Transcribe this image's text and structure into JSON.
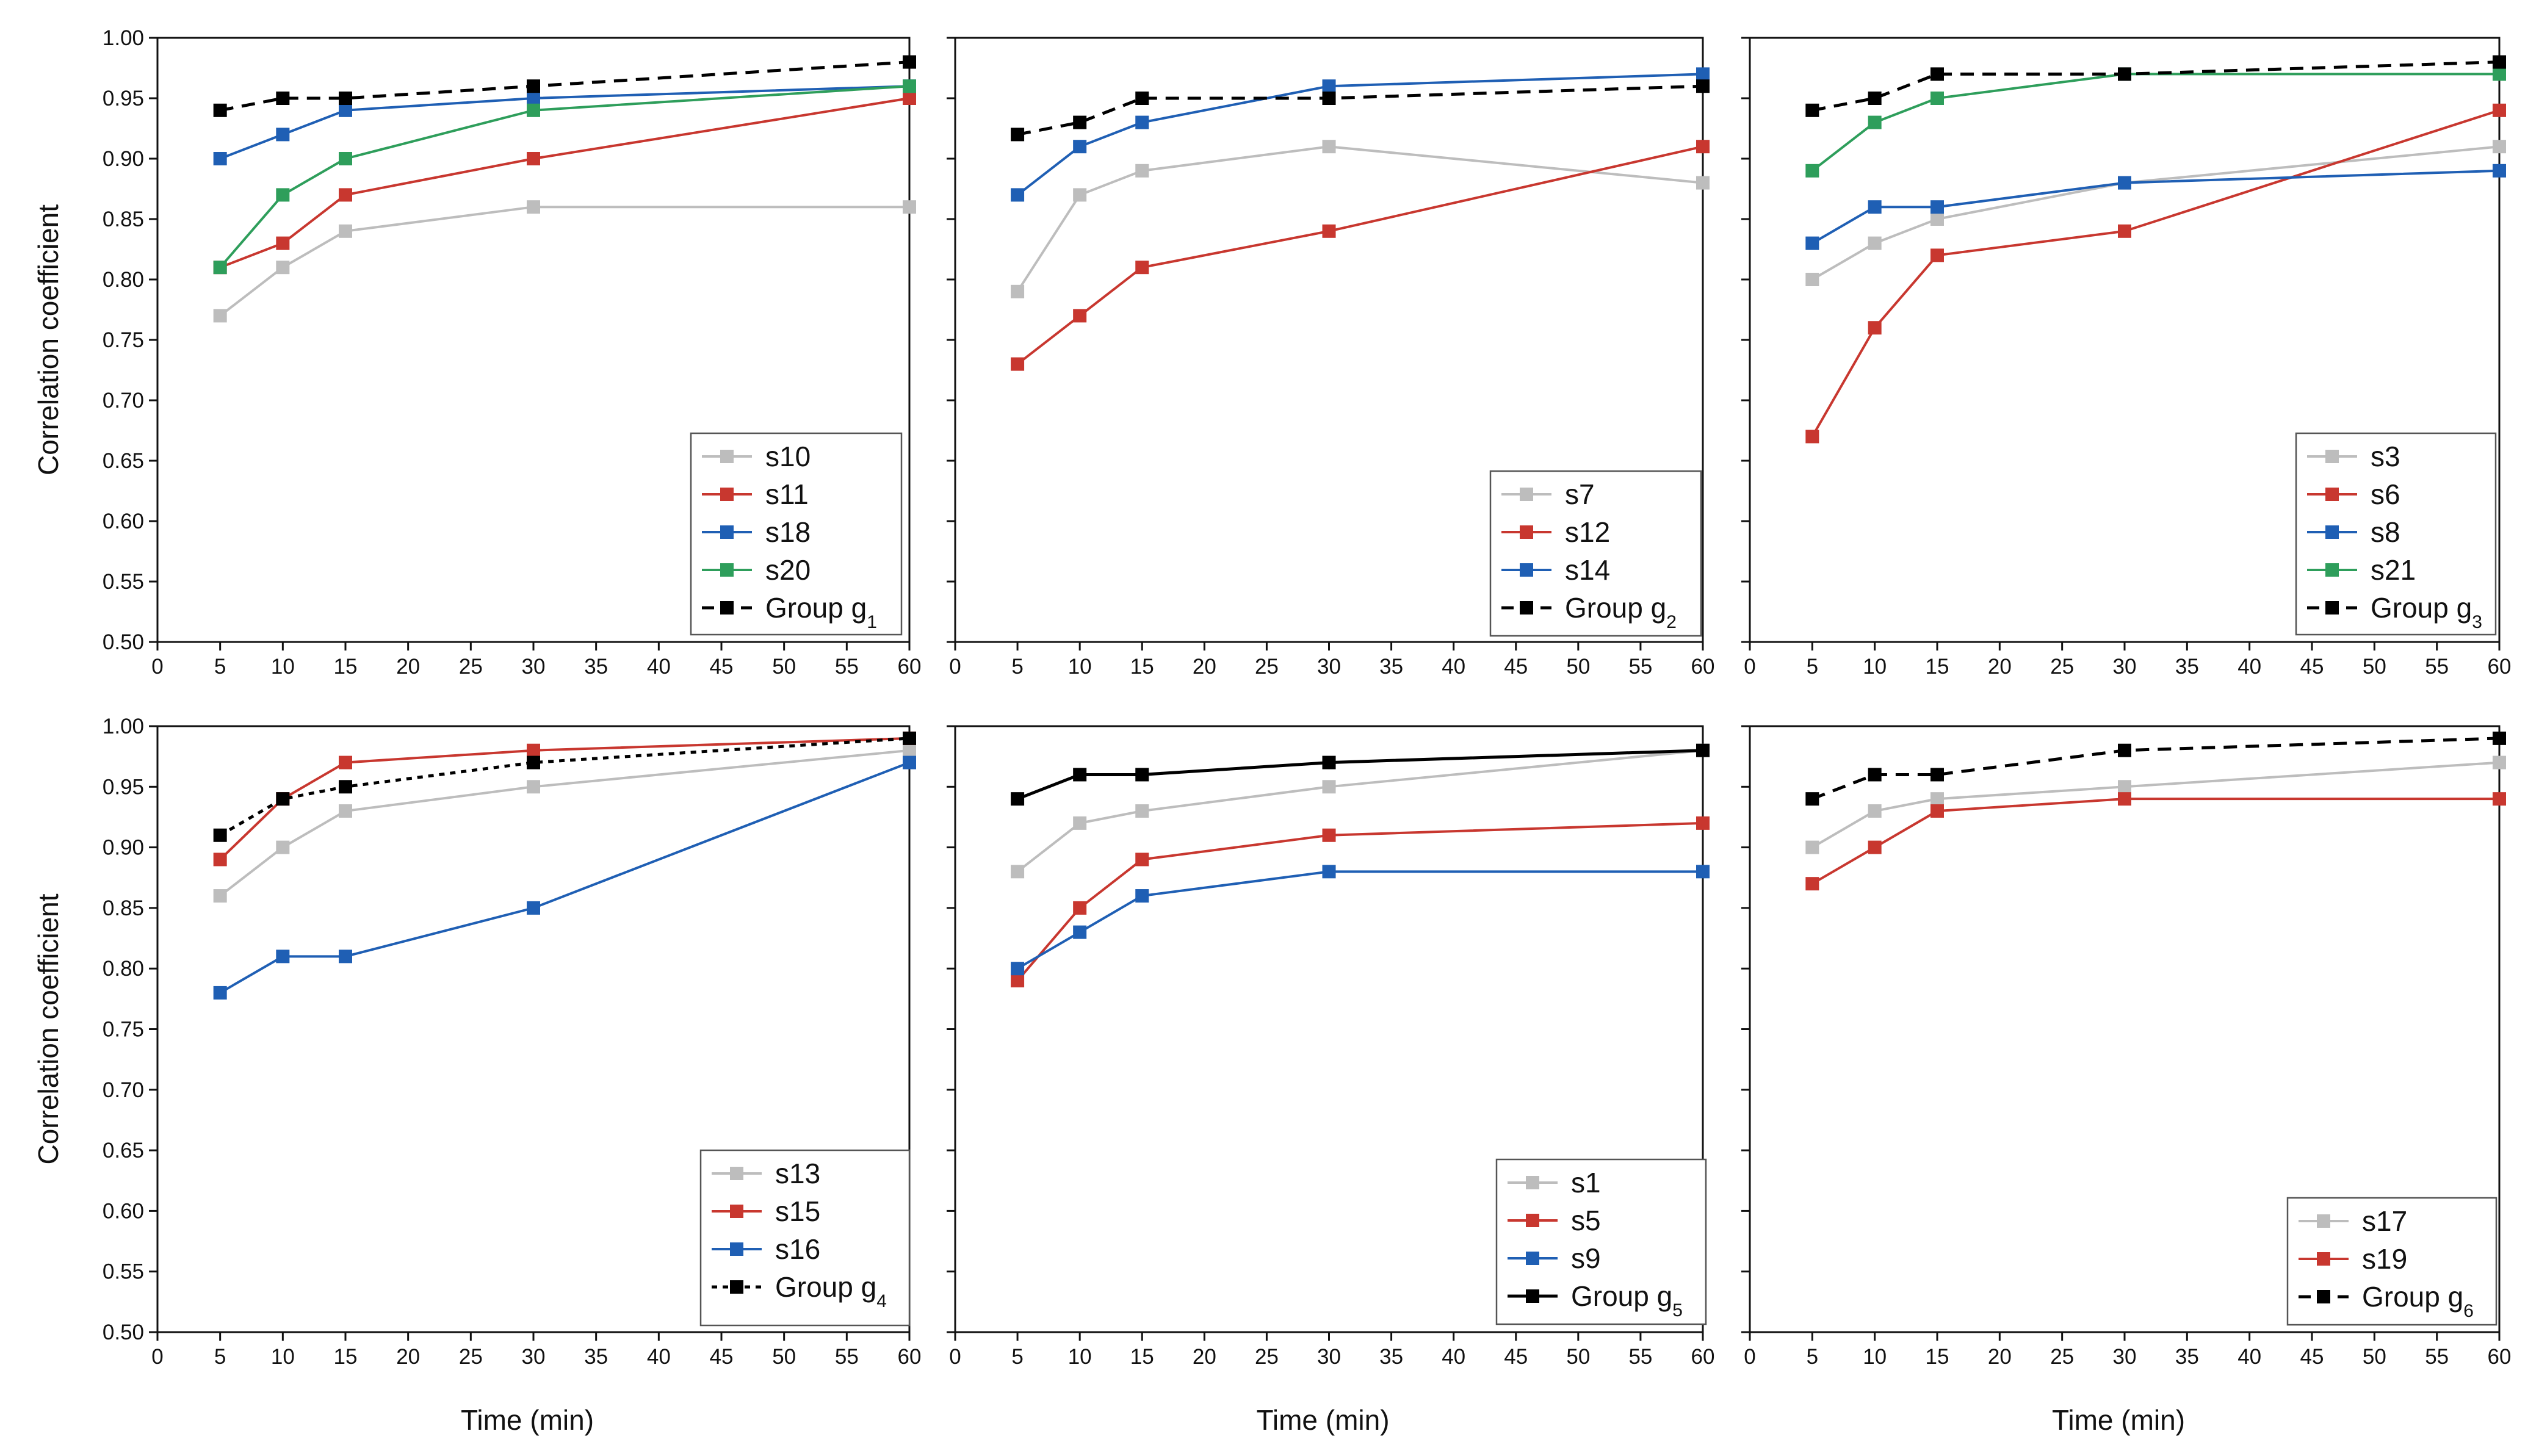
{
  "figure": {
    "y_axis_label": "Correlation coefficient",
    "x_axis_label": "Time (min)"
  },
  "chart_data": [
    {
      "type": "line",
      "panel": "top-left",
      "xlabel": "",
      "ylabel": "Correlation coefficient",
      "xlim": [
        0,
        60
      ],
      "ylim": [
        0.5,
        1.0
      ],
      "x": [
        5,
        10,
        15,
        30,
        60
      ],
      "legend_position": "bottom-right",
      "series": [
        {
          "name": "s10",
          "values": [
            0.77,
            0.81,
            0.84,
            0.86,
            0.86
          ],
          "color": "#bdbdbd",
          "style": "solid"
        },
        {
          "name": "s11",
          "values": [
            0.81,
            0.83,
            0.87,
            0.9,
            0.95
          ],
          "color": "#c8372f",
          "style": "solid"
        },
        {
          "name": "s18",
          "values": [
            0.9,
            0.92,
            0.94,
            0.95,
            0.96
          ],
          "color": "#1f5fb4",
          "style": "solid"
        },
        {
          "name": "s20",
          "values": [
            0.81,
            0.87,
            0.9,
            0.94,
            0.96
          ],
          "color": "#2e9e5b",
          "style": "solid"
        },
        {
          "name": "Group g",
          "subscript": "1",
          "values": [
            0.94,
            0.95,
            0.95,
            0.96,
            0.98
          ],
          "color": "#000000",
          "style": "dashed"
        }
      ]
    },
    {
      "type": "line",
      "panel": "top-middle",
      "xlabel": "",
      "ylabel": "",
      "xlim": [
        0,
        60
      ],
      "ylim": [
        0.5,
        1.0
      ],
      "x": [
        5,
        10,
        15,
        30,
        60
      ],
      "legend_position": "bottom-right",
      "series": [
        {
          "name": "s7",
          "values": [
            0.79,
            0.87,
            0.89,
            0.91,
            0.88
          ],
          "color": "#bdbdbd",
          "style": "solid"
        },
        {
          "name": "s12",
          "values": [
            0.73,
            0.77,
            0.81,
            0.84,
            0.91
          ],
          "color": "#c8372f",
          "style": "solid"
        },
        {
          "name": "s14",
          "values": [
            0.87,
            0.91,
            0.93,
            0.96,
            0.97
          ],
          "color": "#1f5fb4",
          "style": "solid"
        },
        {
          "name": "Group g",
          "subscript": "2",
          "values": [
            0.92,
            0.93,
            0.95,
            0.95,
            0.96
          ],
          "color": "#000000",
          "style": "dashed"
        }
      ]
    },
    {
      "type": "line",
      "panel": "top-right",
      "xlabel": "",
      "ylabel": "",
      "xlim": [
        0,
        60
      ],
      "ylim": [
        0.5,
        1.0
      ],
      "x": [
        5,
        10,
        15,
        30,
        60
      ],
      "legend_position": "bottom-right",
      "series": [
        {
          "name": "s3",
          "values": [
            0.8,
            0.83,
            0.85,
            0.88,
            0.91
          ],
          "color": "#bdbdbd",
          "style": "solid"
        },
        {
          "name": "s6",
          "values": [
            0.67,
            0.76,
            0.82,
            0.84,
            0.94
          ],
          "color": "#c8372f",
          "style": "solid"
        },
        {
          "name": "s8",
          "values": [
            0.83,
            0.86,
            0.86,
            0.88,
            0.89
          ],
          "color": "#1f5fb4",
          "style": "solid"
        },
        {
          "name": "s21",
          "values": [
            0.89,
            0.93,
            0.95,
            0.97,
            0.97
          ],
          "color": "#2e9e5b",
          "style": "solid"
        },
        {
          "name": "Group g",
          "subscript": "3",
          "values": [
            0.94,
            0.95,
            0.97,
            0.97,
            0.98
          ],
          "color": "#000000",
          "style": "dashed"
        }
      ]
    },
    {
      "type": "line",
      "panel": "bottom-left",
      "xlabel": "Time (min)",
      "ylabel": "Correlation coefficient",
      "xlim": [
        0,
        60
      ],
      "ylim": [
        0.5,
        1.0
      ],
      "x": [
        5,
        10,
        15,
        30,
        60
      ],
      "legend_position": "bottom-right",
      "series": [
        {
          "name": "s13",
          "values": [
            0.86,
            0.9,
            0.93,
            0.95,
            0.98
          ],
          "color": "#bdbdbd",
          "style": "solid"
        },
        {
          "name": "s15",
          "values": [
            0.89,
            0.94,
            0.97,
            0.98,
            0.99
          ],
          "color": "#c8372f",
          "style": "solid"
        },
        {
          "name": "s16",
          "values": [
            0.78,
            0.81,
            0.81,
            0.85,
            0.97
          ],
          "color": "#1f5fb4",
          "style": "solid"
        },
        {
          "name": "Group g",
          "subscript": "4",
          "values": [
            0.91,
            0.94,
            0.95,
            0.97,
            0.99
          ],
          "color": "#000000",
          "style": "dotted"
        }
      ]
    },
    {
      "type": "line",
      "panel": "bottom-middle",
      "xlabel": "Time (min)",
      "ylabel": "",
      "xlim": [
        0,
        60
      ],
      "ylim": [
        0.5,
        1.0
      ],
      "x": [
        5,
        10,
        15,
        30,
        60
      ],
      "legend_position": "bottom-right",
      "series": [
        {
          "name": "s1",
          "values": [
            0.88,
            0.92,
            0.93,
            0.95,
            0.98
          ],
          "color": "#bdbdbd",
          "style": "solid"
        },
        {
          "name": "s5",
          "values": [
            0.79,
            0.85,
            0.89,
            0.91,
            0.92
          ],
          "color": "#c8372f",
          "style": "solid"
        },
        {
          "name": "s9",
          "values": [
            0.8,
            0.83,
            0.86,
            0.88,
            0.88
          ],
          "color": "#1f5fb4",
          "style": "solid"
        },
        {
          "name": "Group g",
          "subscript": "5",
          "values": [
            0.94,
            0.96,
            0.96,
            0.97,
            0.98
          ],
          "color": "#000000",
          "style": "solid"
        }
      ]
    },
    {
      "type": "line",
      "panel": "bottom-right",
      "xlabel": "Time (min)",
      "ylabel": "",
      "xlim": [
        0,
        60
      ],
      "ylim": [
        0.5,
        1.0
      ],
      "x": [
        5,
        10,
        15,
        30,
        60
      ],
      "legend_position": "bottom-right",
      "series": [
        {
          "name": "s17",
          "values": [
            0.9,
            0.93,
            0.94,
            0.95,
            0.97
          ],
          "color": "#bdbdbd",
          "style": "solid"
        },
        {
          "name": "s19",
          "values": [
            0.87,
            0.9,
            0.93,
            0.94,
            0.94
          ],
          "color": "#c8372f",
          "style": "solid"
        },
        {
          "name": "Group g",
          "subscript": "6",
          "values": [
            0.94,
            0.96,
            0.96,
            0.98,
            0.99
          ],
          "color": "#000000",
          "style": "dashed"
        }
      ]
    }
  ]
}
